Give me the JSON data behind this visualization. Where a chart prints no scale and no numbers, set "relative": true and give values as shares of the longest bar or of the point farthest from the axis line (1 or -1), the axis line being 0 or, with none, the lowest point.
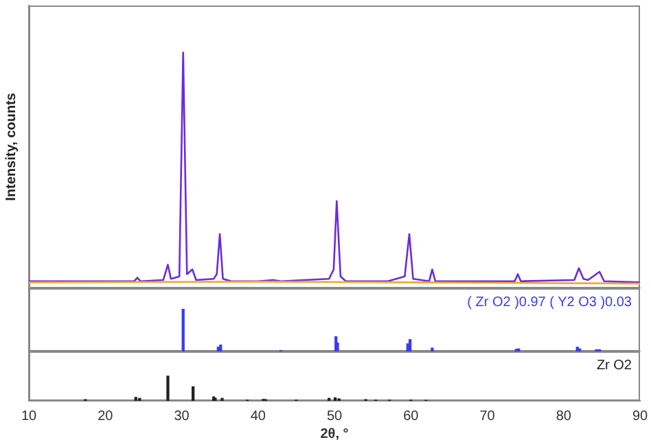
{
  "chart_data": [
    {
      "type": "line",
      "ylabel": "Intensity, counts",
      "relative": true,
      "xlim": [
        10,
        90
      ],
      "tick_labels": false,
      "legend": false,
      "grid": false,
      "marker": "none",
      "series": [
        {
          "color": "#f5a623",
          "x": [
            10,
            40,
            60,
            90
          ],
          "values": [
            0.025,
            0.028,
            0.025,
            0.02
          ]
        },
        {
          "color": "#6a2be0",
          "x": [
            10,
            20,
            23.8,
            24.2,
            24.6,
            27.6,
            28.2,
            28.6,
            29.7,
            30.2,
            30.7,
            31.4,
            31.9,
            34.2,
            34.6,
            35.0,
            35.4,
            36.5,
            40,
            42,
            43,
            49.3,
            49.9,
            50.3,
            50.8,
            51.5,
            57,
            59.2,
            59.8,
            60.3,
            62.4,
            62.8,
            63.2,
            73.6,
            74.0,
            74.4,
            81.4,
            82.0,
            82.6,
            83.2,
            84.7,
            85.3,
            90
          ],
          "values": [
            0.03,
            0.03,
            0.03,
            0.045,
            0.03,
            0.035,
            0.1,
            0.04,
            0.05,
            1.0,
            0.06,
            0.08,
            0.035,
            0.04,
            0.06,
            0.23,
            0.04,
            0.03,
            0.03,
            0.035,
            0.03,
            0.04,
            0.08,
            0.37,
            0.05,
            0.03,
            0.03,
            0.05,
            0.23,
            0.04,
            0.03,
            0.08,
            0.03,
            0.03,
            0.06,
            0.03,
            0.035,
            0.085,
            0.04,
            0.035,
            0.07,
            0.03,
            0.025
          ]
        }
      ]
    },
    {
      "type": "bar",
      "relative": true,
      "xlim": [
        10,
        90
      ],
      "tick_labels": false,
      "legend": false,
      "grid": false,
      "series": [
        {
          "name": "( Zr O2 )0.97 ( Y2 O3 )0.03",
          "color": "#3a3af0",
          "x": [
            30.2,
            34.8,
            35.1,
            43.0,
            50.2,
            50.4,
            59.6,
            59.9,
            62.8,
            73.8,
            74.1,
            81.8,
            82.1,
            84.3,
            84.7
          ],
          "values": [
            1.0,
            0.1,
            0.15,
            0.02,
            0.35,
            0.2,
            0.18,
            0.28,
            0.08,
            0.05,
            0.06,
            0.1,
            0.06,
            0.04,
            0.04
          ]
        }
      ]
    },
    {
      "type": "bar",
      "relative": true,
      "xlim": [
        10,
        90
      ],
      "xticks": [
        10,
        20,
        30,
        40,
        50,
        60,
        70,
        80,
        90
      ],
      "xlabel": "2θ, °",
      "tick_labels": "x",
      "legend": false,
      "grid": false,
      "series": [
        {
          "name": "Zr O2",
          "color": "#222222",
          "x": [
            17.4,
            24.0,
            24.5,
            28.2,
            31.5,
            34.2,
            34.4,
            35.3,
            38.6,
            40.7,
            41.0,
            45.0,
            49.3,
            50.1,
            50.6,
            54.1,
            55.4,
            57.2,
            60.0,
            62.0
          ],
          "values": [
            0.05,
            0.14,
            0.1,
            1.0,
            0.57,
            0.16,
            0.1,
            0.1,
            0.03,
            0.06,
            0.05,
            0.03,
            0.1,
            0.12,
            0.08,
            0.05,
            0.03,
            0.03,
            0.03,
            0.02
          ]
        }
      ]
    }
  ]
}
